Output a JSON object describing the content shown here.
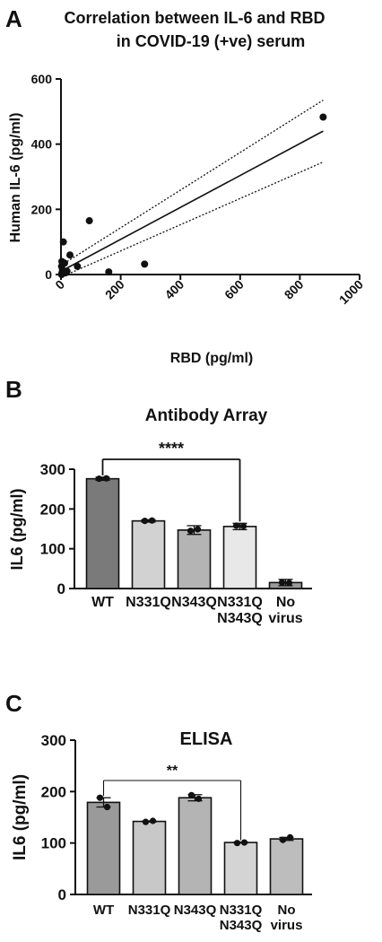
{
  "chart_data": [
    {
      "panel": "A",
      "type": "scatter",
      "title_lines": [
        "Correlation between IL-6 and RBD",
        "in COVID-19 (+ve) serum"
      ],
      "xlabel": "RBD (pg/ml)",
      "ylabel": "Human IL-6 (pg/ml)",
      "xlim": [
        0,
        1000
      ],
      "ylim": [
        0,
        600
      ],
      "xticks": [
        0,
        200,
        400,
        600,
        800,
        1000
      ],
      "yticks": [
        0,
        200,
        400,
        600
      ],
      "points": [
        {
          "x": 2,
          "y": 0
        },
        {
          "x": 3,
          "y": 5
        },
        {
          "x": 5,
          "y": 15
        },
        {
          "x": 2,
          "y": 25
        },
        {
          "x": 3,
          "y": 40
        },
        {
          "x": 8,
          "y": 100
        },
        {
          "x": 12,
          "y": 35
        },
        {
          "x": 15,
          "y": 5
        },
        {
          "x": 20,
          "y": 10
        },
        {
          "x": 30,
          "y": 60
        },
        {
          "x": 55,
          "y": 25
        },
        {
          "x": 95,
          "y": 165
        },
        {
          "x": 160,
          "y": 8
        },
        {
          "x": 280,
          "y": 32
        },
        {
          "x": 878,
          "y": 483
        }
      ],
      "regression": {
        "x0": 0,
        "y0": 10,
        "x1": 878,
        "y1": 440
      },
      "ci_upper": {
        "x0": 0,
        "y0": 28,
        "x1": 878,
        "y1": 535
      },
      "ci_lower": {
        "x0": 0,
        "y0": -8,
        "x1": 878,
        "y1": 345
      },
      "grid": false
    },
    {
      "panel": "B",
      "type": "bar",
      "title": "Antibody Array",
      "ylabel": "IL6 (pg/ml)",
      "ylim": [
        0,
        300
      ],
      "yticks": [
        0,
        100,
        200,
        300
      ],
      "categories": [
        [
          "WT"
        ],
        [
          "N331Q"
        ],
        [
          "N343Q"
        ],
        [
          "N331Q",
          "N343Q"
        ],
        [
          "No",
          "virus"
        ]
      ],
      "values": [
        276,
        170,
        147,
        156,
        15
      ],
      "errors": [
        4,
        3,
        11,
        8,
        8
      ],
      "colors": [
        "#7a7a7a",
        "#d2d2d2",
        "#b4b4b4",
        "#e8e8e8",
        "#9a9a9a"
      ],
      "points": [
        [
          276,
          277
        ],
        [
          170,
          171
        ],
        [
          145,
          149
        ],
        [
          158,
          157
        ],
        [
          15,
          14
        ]
      ],
      "significance": {
        "from": 0,
        "to": 3,
        "label": "****"
      },
      "grid": false
    },
    {
      "panel": "C",
      "type": "bar",
      "title": "ELISA",
      "ylabel": "IL6 (pg/ml)",
      "ylim": [
        0,
        300
      ],
      "yticks": [
        0,
        100,
        200,
        300
      ],
      "categories": [
        [
          "WT"
        ],
        [
          "N331Q"
        ],
        [
          "N343Q"
        ],
        [
          "N331Q",
          "N343Q"
        ],
        [
          "No",
          "virus"
        ]
      ],
      "values": [
        179,
        142,
        188,
        101,
        108
      ],
      "errors": [
        9,
        1,
        6,
        1,
        3
      ],
      "colors": [
        "#9a9a9a",
        "#c8c8c8",
        "#b4b4b4",
        "#d4d4d4",
        "#bdbdbd"
      ],
      "points": [
        [
          188,
          170
        ],
        [
          141,
          143
        ],
        [
          193,
          186
        ],
        [
          100,
          101
        ],
        [
          106,
          111
        ]
      ],
      "significance": {
        "from": 0,
        "to": 3,
        "label": "**"
      },
      "grid": false
    }
  ]
}
